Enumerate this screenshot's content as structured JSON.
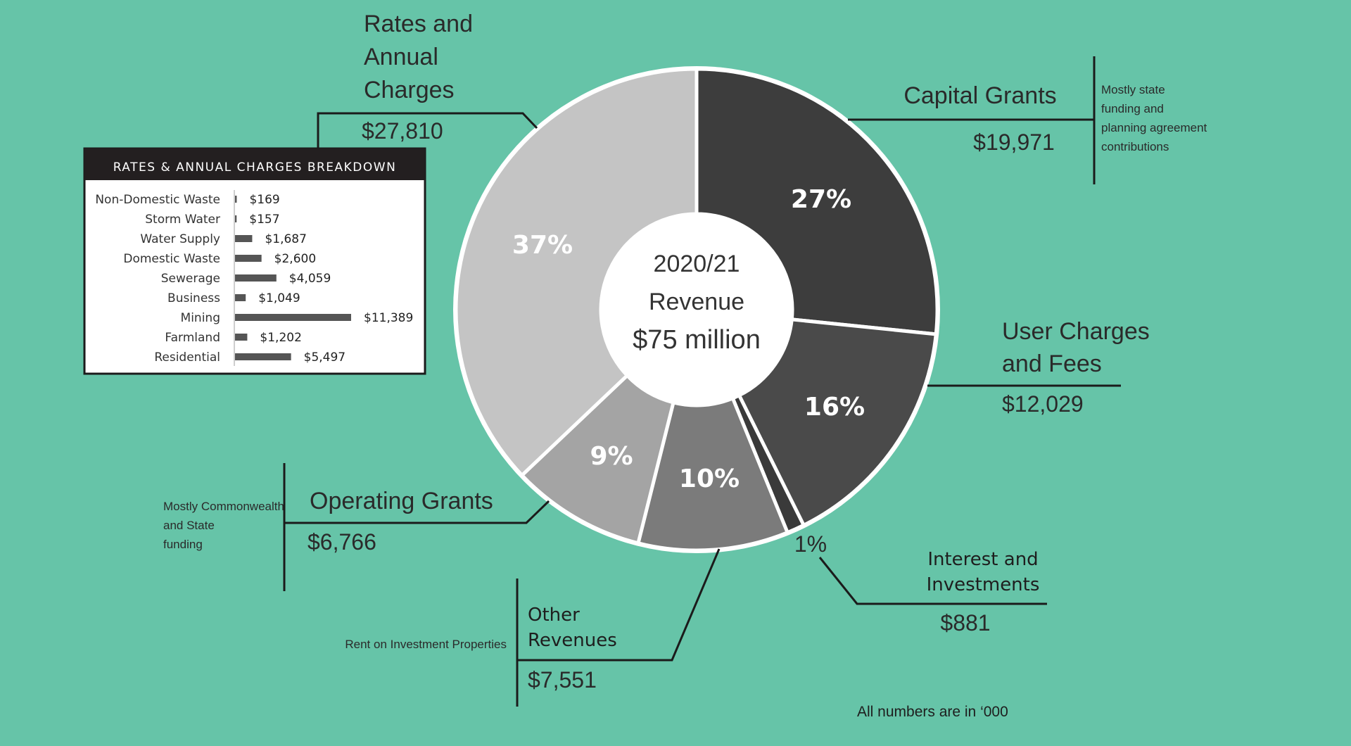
{
  "chart_data": [
    {
      "type": "pie",
      "center_label": {
        "year": "2020/21",
        "line2": "Revenue",
        "total": "$75 million"
      },
      "slices": [
        {
          "name": "Capital Grants",
          "pct_label": "27%",
          "value": 19971,
          "value_label": "$19,971",
          "note": [
            "Mostly state",
            "funding and",
            "planning agreement",
            "contributions"
          ],
          "color": "#3d3d3d"
        },
        {
          "name": "User Charges and Fees",
          "title_lines": [
            "User Charges",
            "and Fees"
          ],
          "pct_label": "16%",
          "value": 12029,
          "value_label": "$12,029",
          "color": "#4a4a4a"
        },
        {
          "name": "Interest and Investments",
          "title_lines": [
            "Interest and",
            "Investments"
          ],
          "pct_label": "1%",
          "value": 881,
          "value_label": "$881",
          "color": "#3a3a3a"
        },
        {
          "name": "Other Revenues",
          "title_lines": [
            "Other",
            "Revenues"
          ],
          "pct_label": "10%",
          "value": 7551,
          "value_label": "$7,551",
          "note": [
            "Rent on Investment Properties"
          ],
          "color": "#7b7b7b"
        },
        {
          "name": "Operating Grants",
          "pct_label": "9%",
          "value": 6766,
          "value_label": "$6,766",
          "note": [
            "Mostly Commonwealth",
            "and State",
            "funding"
          ],
          "color": "#a4a4a4"
        },
        {
          "name": "Rates and Annual Charges",
          "title_lines": [
            "Rates and",
            "Annual",
            "Charges"
          ],
          "pct_label": "37%",
          "value": 27810,
          "value_label": "$27,810",
          "color": "#c4c4c4"
        }
      ]
    },
    {
      "type": "bar",
      "orientation": "horizontal",
      "title": "RATES & ANNUAL CHARGES BREAKDOWN",
      "categories": [
        "Non-Domestic Waste",
        "Storm Water",
        "Water Supply",
        "Domestic Waste",
        "Sewerage",
        "Business",
        "Mining",
        "Farmland",
        "Residential"
      ],
      "values": [
        169,
        157,
        1687,
        2600,
        4059,
        1049,
        11389,
        1202,
        5497
      ],
      "value_labels": [
        "$169",
        "$157",
        "$1,687",
        "$2,600",
        "$4,059",
        "$1,049",
        "$11,389",
        "$1,202",
        "$5,497"
      ],
      "bar_color": "#555555"
    }
  ],
  "footnote": "All numbers are in ‘000"
}
